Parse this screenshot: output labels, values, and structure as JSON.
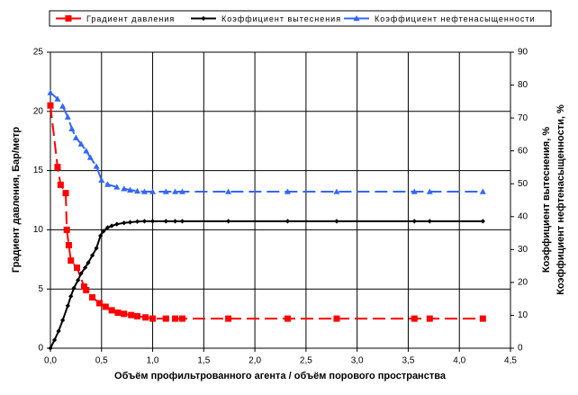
{
  "chart_data": {
    "type": "line",
    "xlabel": "Объём профильтрованного агента / объём порового пространства",
    "ylabel": "Градиент давления, Бар/метр",
    "y2label": [
      "Коэффициент вытеснения, %",
      "Коэффициент нефтенасыщенности, %"
    ],
    "xlim": [
      0,
      4.5
    ],
    "xticks": [
      {
        "value": 0,
        "label": "0,0"
      },
      {
        "value": 0.5,
        "label": "0,5"
      },
      {
        "value": 1,
        "label": "1,0"
      },
      {
        "value": 1.5,
        "label": "1,5"
      },
      {
        "value": 2,
        "label": "2,0"
      },
      {
        "value": 2.5,
        "label": "2,5"
      },
      {
        "value": 3,
        "label": "3,0"
      },
      {
        "value": 3.5,
        "label": "3,5"
      },
      {
        "value": 4,
        "label": "4,0"
      },
      {
        "value": 4.5,
        "label": "4,5"
      }
    ],
    "ylim": [
      0,
      25
    ],
    "yticks": [
      0,
      5,
      10,
      15,
      20,
      25
    ],
    "y2lim": [
      0,
      90
    ],
    "y2ticks": [
      0,
      10,
      20,
      30,
      40,
      50,
      60,
      70,
      80,
      90
    ],
    "grid": true,
    "legend": "top",
    "series": [
      {
        "name": "Градиент давления",
        "color": "#ff0000",
        "marker": "square",
        "line_style": "dashed",
        "x": [
          0.0,
          0.07,
          0.1,
          0.15,
          0.16,
          0.18,
          0.2,
          0.26,
          0.33,
          0.35,
          0.41,
          0.48,
          0.54,
          0.6,
          0.66,
          0.72,
          0.79,
          0.85,
          0.93,
          1.0,
          1.13,
          1.22,
          1.29,
          1.74,
          2.32,
          2.8,
          3.56,
          3.71,
          4.23
        ],
        "values": [
          20.5,
          15.3,
          13.8,
          13.1,
          10.0,
          8.7,
          7.4,
          6.8,
          5.2,
          4.9,
          4.3,
          3.8,
          3.5,
          3.2,
          3.0,
          2.9,
          2.8,
          2.7,
          2.6,
          2.5,
          2.5,
          2.5,
          2.5,
          2.5,
          2.5,
          2.5,
          2.5,
          2.5,
          2.5
        ]
      },
      {
        "name": "Коэффициент вытеснения",
        "color": "#000000",
        "marker": "diamond",
        "line_style": "solid",
        "axis": "y2",
        "x": [
          0,
          0.04,
          0.08,
          0.12,
          0.17,
          0.2,
          0.23,
          0.27,
          0.3,
          0.34,
          0.37,
          0.41,
          0.45,
          0.49,
          0.52,
          0.56,
          0.6,
          0.65,
          0.72,
          0.78,
          0.85,
          0.92,
          1.0,
          1.13,
          1.22,
          1.29,
          1.74,
          2.32,
          2.8,
          3.56,
          3.71,
          4.23
        ],
        "values": [
          0,
          2.5,
          5.2,
          8.5,
          12.9,
          15.8,
          18.3,
          20.7,
          22.7,
          24.5,
          26,
          28.2,
          30.4,
          34.2,
          35.6,
          36.7,
          37.2,
          37.7,
          38.1,
          38.3,
          38.5,
          38.6,
          38.6,
          38.6,
          38.6,
          38.6,
          38.6,
          38.6,
          38.6,
          38.6,
          38.6,
          38.6
        ]
      },
      {
        "name": "Коэффициент нефтенасыщенности",
        "color": "#3366ff",
        "marker": "triangle",
        "line_style": "dashed",
        "axis": "y2",
        "x": [
          0,
          0.07,
          0.12,
          0.17,
          0.21,
          0.25,
          0.3,
          0.35,
          0.39,
          0.45,
          0.5,
          0.56,
          0.65,
          0.72,
          0.78,
          0.85,
          0.92,
          1.0,
          1.13,
          1.22,
          1.29,
          1.74,
          2.32,
          2.8,
          3.56,
          3.71,
          4.23
        ],
        "values": [
          77.7,
          75.8,
          73.6,
          70.3,
          66.7,
          64,
          62.1,
          60,
          58,
          55.3,
          51.1,
          49.8,
          49,
          48.5,
          48.1,
          47.8,
          47.6,
          47.6,
          47.6,
          47.6,
          47.6,
          47.6,
          47.6,
          47.6,
          47.6,
          47.6,
          47.6
        ]
      }
    ]
  }
}
